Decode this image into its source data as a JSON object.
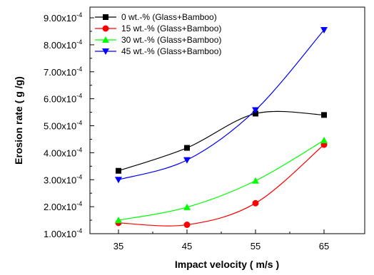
{
  "chart_data": {
    "type": "line",
    "x": [
      35,
      45,
      55,
      65
    ],
    "xlabel": "Impact velocity ( m/s )",
    "ylabel": "Erosion rate ( g /g)",
    "xlim": [
      30,
      70
    ],
    "ylim": [
      0.0001,
      0.0009
    ],
    "x_ticks": [
      35,
      45,
      55,
      65
    ],
    "y_ticks": [
      {
        "value": 0.0001,
        "mantissa": "1.00x10",
        "exp": "-4"
      },
      {
        "value": 0.0002,
        "mantissa": "2.00x10",
        "exp": "-4"
      },
      {
        "value": 0.0003,
        "mantissa": "3.00x10",
        "exp": "-4"
      },
      {
        "value": 0.0004,
        "mantissa": "4.00x10",
        "exp": "-4"
      },
      {
        "value": 0.0005,
        "mantissa": "5.00x10",
        "exp": "-4"
      },
      {
        "value": 0.0006,
        "mantissa": "6.00x10",
        "exp": "-4"
      },
      {
        "value": 0.0007,
        "mantissa": "7.00x10",
        "exp": "-4"
      },
      {
        "value": 0.0008,
        "mantissa": "8.00x10",
        "exp": "-4"
      },
      {
        "value": 0.0009,
        "mantissa": "9.00x10",
        "exp": "-4"
      }
    ],
    "grid": false,
    "legend_position": "top-left",
    "series": [
      {
        "name": "0  wt.-% (Glass+Bamboo)",
        "color": "#000000",
        "marker": "square",
        "values": [
          0.000333,
          0.000418,
          0.000545,
          0.00054
        ]
      },
      {
        "name": "15 wt.-% (Glass+Bamboo)",
        "color": "#ff0000",
        "marker": "circle",
        "values": [
          0.00014,
          0.000133,
          0.000213,
          0.00043
        ]
      },
      {
        "name": "30 wt.-% (Glass+Bamboo)",
        "color": "#00ff00",
        "marker": "triangle-up",
        "values": [
          0.00015,
          0.000198,
          0.000296,
          0.000446
        ]
      },
      {
        "name": "45 wt.-% (Glass+Bamboo)",
        "color": "#0000ff",
        "marker": "triangle-down",
        "values": [
          0.0003,
          0.000373,
          0.000558,
          0.000855
        ]
      }
    ]
  }
}
